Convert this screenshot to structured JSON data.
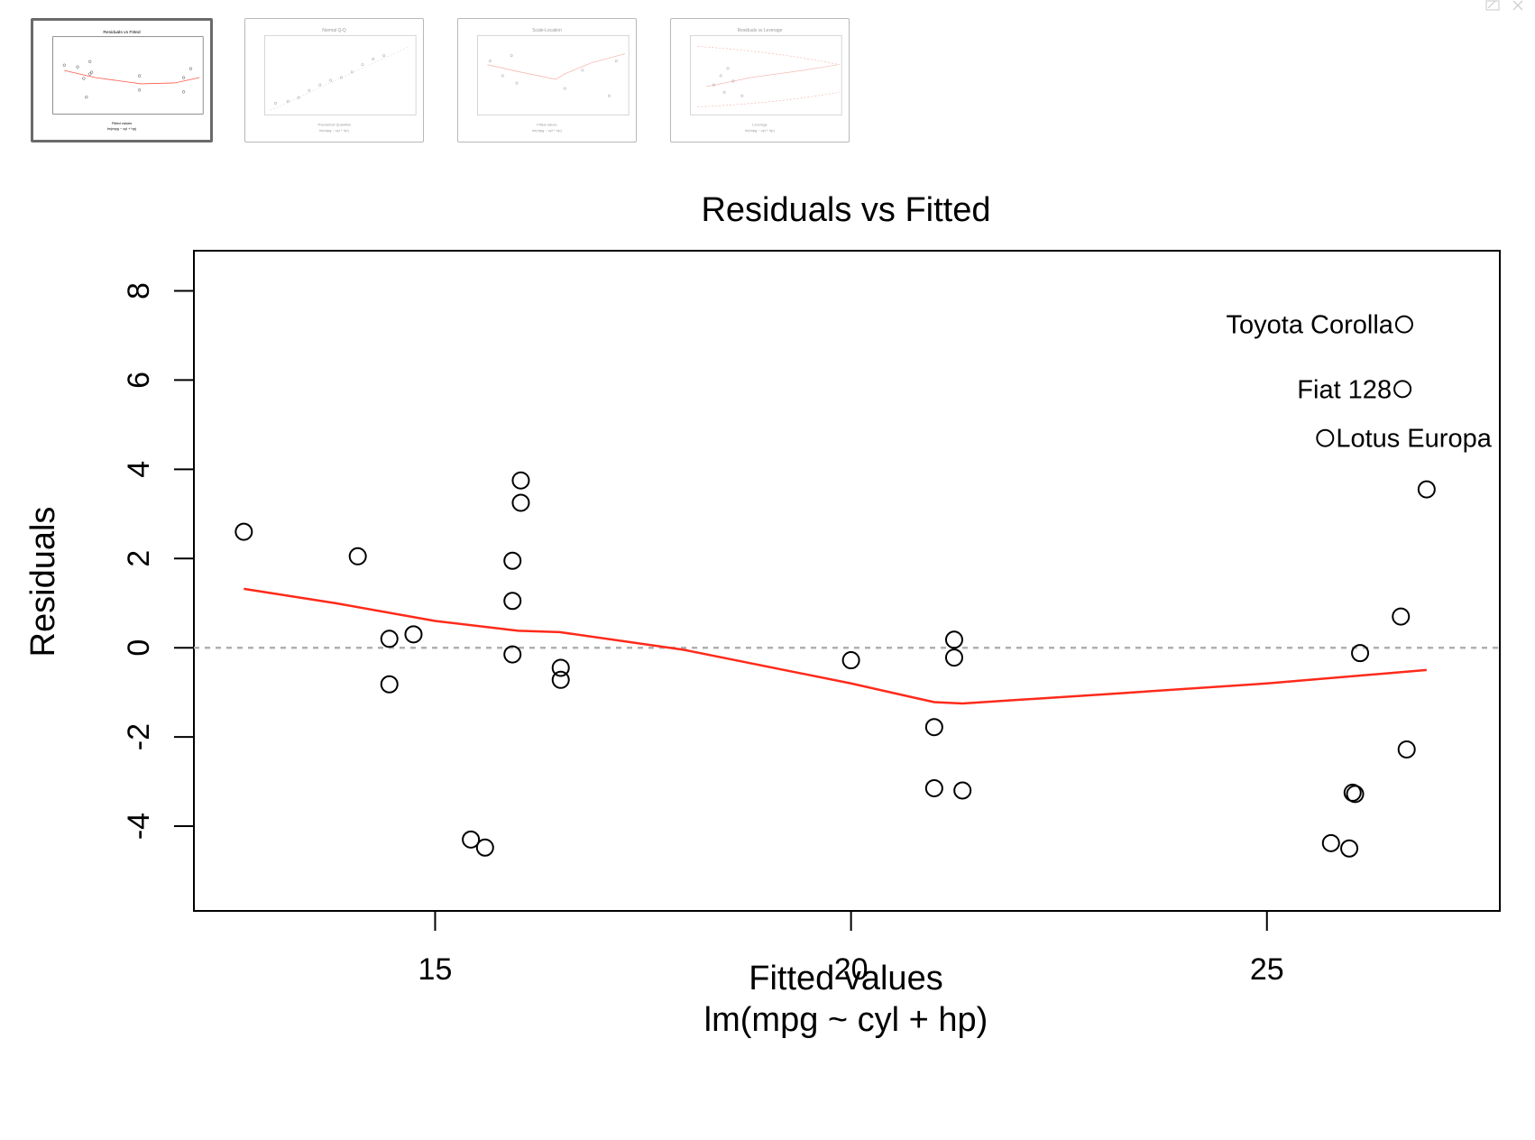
{
  "thumbnails": [
    {
      "title": "Residuals vs Fitted",
      "xlabel": "Fitted values",
      "subtitle": "lm(mpg ~ cyl + hp)",
      "selected": true
    },
    {
      "title": "Normal Q-Q",
      "xlabel": "Theoretical Quantiles",
      "subtitle": "lm(mpg ~ cyl + hp)",
      "selected": false
    },
    {
      "title": "Scale-Location",
      "xlabel": "Fitted values",
      "subtitle": "lm(mpg ~ cyl + hp)",
      "selected": false
    },
    {
      "title": "Residuals vs Leverage",
      "xlabel": "Leverage",
      "subtitle": "lm(mpg ~ cyl + hp)",
      "selected": false
    }
  ],
  "chart_data": {
    "type": "scatter",
    "title": "Residuals vs Fitted",
    "xlabel": "Fitted values",
    "subtitle": "lm(mpg ~ cyl + hp)",
    "ylabel": "Residuals",
    "xlim": [
      12.1,
      27.8
    ],
    "ylim": [
      -5.9,
      8.9
    ],
    "xticks": [
      15,
      20,
      25
    ],
    "yticks": [
      -4,
      -2,
      0,
      2,
      4,
      6,
      8
    ],
    "grid": false,
    "reference_line": {
      "y": 0,
      "style": "dotted",
      "color": "#b0b0b0"
    },
    "points": [
      {
        "x": 12.7,
        "y": 2.6
      },
      {
        "x": 14.07,
        "y": 2.05
      },
      {
        "x": 14.45,
        "y": 0.2
      },
      {
        "x": 14.45,
        "y": -0.82
      },
      {
        "x": 14.74,
        "y": 0.3
      },
      {
        "x": 15.43,
        "y": -4.3
      },
      {
        "x": 15.6,
        "y": -4.48
      },
      {
        "x": 15.93,
        "y": 1.95
      },
      {
        "x": 15.93,
        "y": 1.05
      },
      {
        "x": 15.93,
        "y": -0.15
      },
      {
        "x": 16.03,
        "y": 3.75
      },
      {
        "x": 16.03,
        "y": 3.25
      },
      {
        "x": 16.51,
        "y": -0.45
      },
      {
        "x": 16.51,
        "y": -0.72
      },
      {
        "x": 20.0,
        "y": -0.28
      },
      {
        "x": 21.0,
        "y": -1.78
      },
      {
        "x": 21.0,
        "y": -3.15
      },
      {
        "x": 21.24,
        "y": 0.18
      },
      {
        "x": 21.24,
        "y": -0.22
      },
      {
        "x": 21.34,
        "y": -3.2
      },
      {
        "x": 25.77,
        "y": -4.38
      },
      {
        "x": 25.99,
        "y": -4.5
      },
      {
        "x": 26.03,
        "y": -3.25
      },
      {
        "x": 26.06,
        "y": -3.28
      },
      {
        "x": 26.12,
        "y": -0.12
      },
      {
        "x": 26.61,
        "y": 0.7
      },
      {
        "x": 26.68,
        "y": -2.28
      },
      {
        "x": 26.92,
        "y": 3.55
      },
      {
        "x": 26.65,
        "y": 7.25,
        "label": "Toyota Corolla",
        "label_side": "left"
      },
      {
        "x": 26.63,
        "y": 5.8,
        "label": "Fiat 128",
        "label_side": "left"
      },
      {
        "x": 25.7,
        "y": 4.7,
        "label": "Lotus Europa",
        "label_side": "right"
      }
    ],
    "smoother": {
      "color": "#ff2a1a",
      "x": [
        12.7,
        13.8,
        15.0,
        16.0,
        16.5,
        18.0,
        20.0,
        21.0,
        21.34,
        23.0,
        25.0,
        26.92
      ],
      "y": [
        1.32,
        1.0,
        0.6,
        0.38,
        0.35,
        -0.05,
        -0.8,
        -1.22,
        -1.25,
        -1.05,
        -0.8,
        -0.5
      ]
    }
  },
  "window": {
    "corner_icons": [
      "edit-icon",
      "close-icon"
    ]
  }
}
